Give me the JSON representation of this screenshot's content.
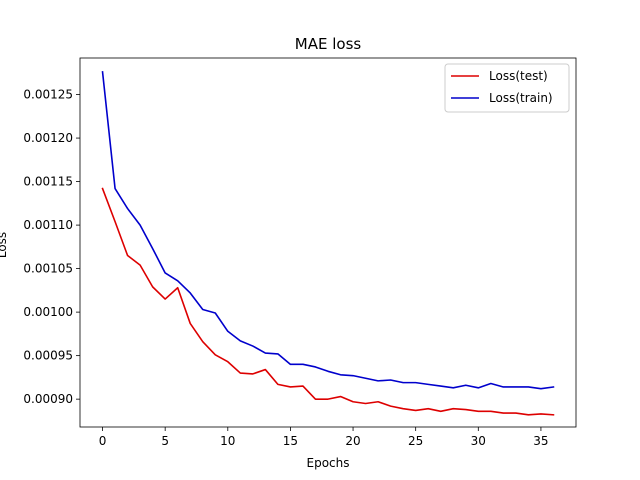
{
  "chart_data": {
    "type": "line",
    "title": "MAE loss",
    "xlabel": "Epochs",
    "ylabel": "Loss",
    "xlim": [
      -1.8,
      37.8
    ],
    "ylim": [
      0.000868,
      0.001292
    ],
    "xticks": [
      0,
      5,
      10,
      15,
      20,
      25,
      30,
      35
    ],
    "xtick_labels": [
      "0",
      "5",
      "10",
      "15",
      "20",
      "25",
      "30",
      "35"
    ],
    "yticks": [
      0.0009,
      0.00095,
      0.001,
      0.00105,
      0.0011,
      0.00115,
      0.0012,
      0.00125
    ],
    "ytick_labels": [
      "0.00090",
      "0.00095",
      "0.00100",
      "0.00105",
      "0.00110",
      "0.00115",
      "0.00120",
      "0.00125"
    ],
    "grid": false,
    "legend_position": "top-right",
    "x": [
      0,
      1,
      2,
      3,
      4,
      5,
      6,
      7,
      8,
      9,
      10,
      11,
      12,
      13,
      14,
      15,
      16,
      17,
      18,
      19,
      20,
      21,
      22,
      23,
      24,
      25,
      26,
      27,
      28,
      29,
      30,
      31,
      32,
      33,
      34,
      35,
      36
    ],
    "series": [
      {
        "name": "Loss(test)",
        "color": "#dd0000",
        "values": [
          0.001142,
          0.001104,
          0.001065,
          0.001054,
          0.001029,
          0.001015,
          0.001028,
          0.000987,
          0.000966,
          0.000951,
          0.000943,
          0.00093,
          0.000929,
          0.000934,
          0.000917,
          0.000914,
          0.000915,
          0.0009,
          0.0009,
          0.000903,
          0.000897,
          0.000895,
          0.000897,
          0.000892,
          0.000889,
          0.000887,
          0.000889,
          0.000886,
          0.000889,
          0.000888,
          0.000886,
          0.000886,
          0.000884,
          0.000884,
          0.000882,
          0.000883,
          0.000882
        ]
      },
      {
        "name": "Loss(train)",
        "color": "#0000cc",
        "values": [
          0.001276,
          0.001142,
          0.001119,
          0.0011,
          0.001073,
          0.001045,
          0.001036,
          0.001022,
          0.001003,
          0.000999,
          0.000978,
          0.000967,
          0.000961,
          0.000953,
          0.000952,
          0.00094,
          0.00094,
          0.000937,
          0.000932,
          0.000928,
          0.000927,
          0.000924,
          0.000921,
          0.000922,
          0.000919,
          0.000919,
          0.000917,
          0.000915,
          0.000913,
          0.000916,
          0.000913,
          0.000918,
          0.000914,
          0.000914,
          0.000914,
          0.000912,
          0.000914
        ]
      }
    ]
  }
}
